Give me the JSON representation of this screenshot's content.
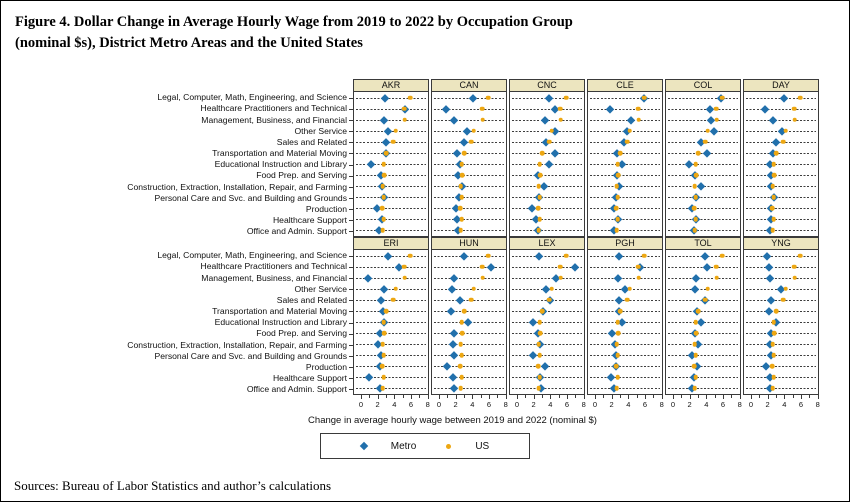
{
  "title": {
    "line1": "Figure 4. Dollar Change in Average Hourly Wage from 2019 to 2022 by Occupation Group",
    "line2": "(nominal $s), District Metro Areas and the United States"
  },
  "sources": "Sources: Bureau of Labor Statistics and author’s calculations",
  "legend": {
    "metro_label": "Metro",
    "us_label": "US"
  },
  "colors": {
    "metro": "#2170ac",
    "us": "#eda712",
    "header_bg": "#ece5bf",
    "border": "#3a3a3a"
  },
  "chart_data": {
    "type": "scatter",
    "title": "Figure 4. Dollar Change in Average Hourly Wage from 2019 to 2022 by Occupation Group (nominal $s), District Metro Areas and the United States",
    "xlabel": "Change in average hourly wage between 2019 and 2022 (nominal $)",
    "x_ticks": [
      0,
      2,
      4,
      6,
      8
    ],
    "x_minor_ticks": [
      1,
      3,
      5,
      7
    ],
    "xlim": [
      -0.95,
      8.16
    ],
    "grid": "dotted-row-lines",
    "legend_position": "bottom-center",
    "categories": [
      "Legal, Computer, Math, Engineering, and Science",
      "Healthcare Practitioners and Technical",
      "Management, Business, and Financial",
      "Other Service",
      "Sales and Related",
      "Transportation and Material Moving",
      "Educational Instruction and Library",
      "Food Prep. and Serving",
      "Construction, Extraction, Installation, Repair, and Farming",
      "Personal Care and Svc. and Building and Grounds",
      "Production",
      "Healthcare Support",
      "Office and Admin. Support"
    ],
    "series_names": [
      "Metro",
      "US"
    ],
    "us": [
      6.0,
      5.2,
      5.3,
      4.2,
      3.9,
      3.0,
      2.7,
      2.8,
      2.6,
      2.7,
      2.5,
      2.7,
      2.6
    ],
    "panel_rows": [
      [
        "AKR",
        "CAN",
        "CNC",
        "CLE",
        "COL",
        "DAY"
      ],
      [
        "ERI",
        "HUN",
        "LEX",
        "PGH",
        "TOL",
        "YNG"
      ]
    ],
    "panels": [
      {
        "code": "AKR",
        "metro": [
          2.9,
          5.3,
          2.7,
          3.2,
          3.0,
          3.0,
          1.2,
          2.4,
          2.5,
          2.7,
          1.9,
          2.5,
          2.1
        ]
      },
      {
        "code": "CAN",
        "metro": [
          4.1,
          0.8,
          1.8,
          3.3,
          3.0,
          2.1,
          2.5,
          2.3,
          2.8,
          2.4,
          2.0,
          2.1,
          2.3
        ]
      },
      {
        "code": "CNC",
        "metro": [
          3.9,
          4.6,
          3.4,
          4.6,
          3.5,
          4.6,
          3.8,
          2.5,
          3.2,
          2.6,
          1.7,
          2.2,
          2.5
        ]
      },
      {
        "code": "CLE",
        "metro": [
          5.9,
          1.8,
          4.3,
          3.8,
          3.5,
          2.6,
          3.2,
          2.6,
          2.9,
          2.5,
          2.2,
          2.7,
          2.2
        ]
      },
      {
        "code": "COL",
        "metro": [
          5.8,
          4.5,
          4.6,
          4.9,
          3.3,
          4.1,
          1.9,
          2.6,
          3.3,
          2.7,
          2.2,
          2.7,
          2.5
        ]
      },
      {
        "code": "DAY",
        "metro": [
          4.0,
          1.6,
          2.6,
          3.7,
          3.0,
          2.6,
          2.3,
          2.4,
          2.4,
          2.8,
          2.4,
          2.4,
          2.2
        ]
      },
      {
        "code": "ERI",
        "metro": [
          3.2,
          4.6,
          0.8,
          2.7,
          2.4,
          2.6,
          2.8,
          2.2,
          2.0,
          2.4,
          2.3,
          0.9,
          2.3
        ]
      },
      {
        "code": "HUN",
        "metro": [
          3.0,
          6.3,
          1.7,
          1.5,
          2.5,
          1.4,
          3.5,
          1.7,
          1.6,
          1.8,
          0.9,
          1.6,
          1.7
        ]
      },
      {
        "code": "LEX",
        "metro": [
          2.6,
          7.0,
          4.7,
          3.5,
          4.0,
          3.1,
          1.9,
          2.5,
          2.7,
          1.9,
          3.4,
          2.7,
          2.9
        ]
      },
      {
        "code": "PGH",
        "metro": [
          2.9,
          5.5,
          2.7,
          3.6,
          2.9,
          2.9,
          3.2,
          2.0,
          2.4,
          2.5,
          2.5,
          1.9,
          2.2
        ]
      },
      {
        "code": "TOL",
        "metro": [
          3.9,
          4.1,
          2.8,
          2.6,
          3.8,
          2.9,
          3.3,
          2.6,
          3.0,
          2.2,
          2.9,
          2.5,
          2.3
        ]
      },
      {
        "code": "YNG",
        "metro": [
          1.9,
          2.1,
          2.2,
          3.6,
          2.4,
          2.1,
          3.0,
          2.4,
          2.3,
          2.4,
          1.8,
          2.2,
          2.2
        ]
      }
    ]
  }
}
